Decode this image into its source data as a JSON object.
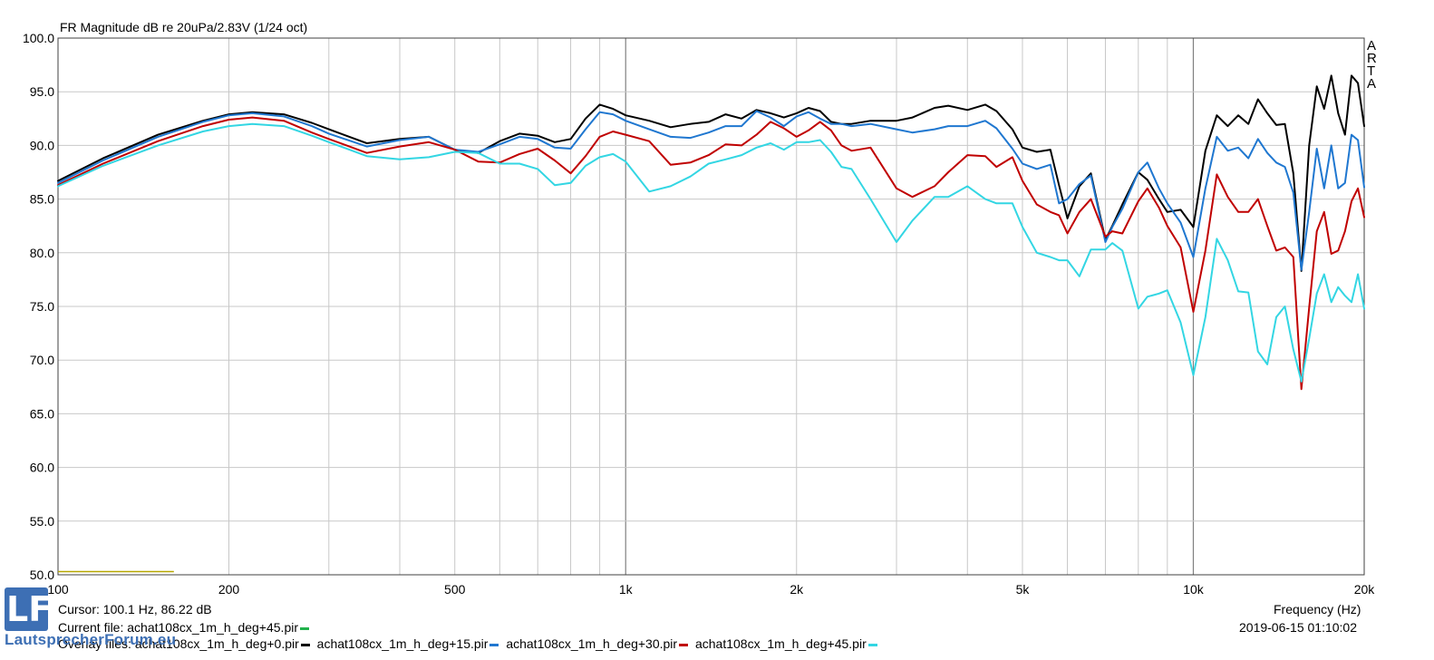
{
  "title": "FR Magnitude dB re 20uPa/2.83V (1/24 oct)",
  "brand_letters": [
    "A",
    "R",
    "T",
    "A"
  ],
  "cursor_text": "Cursor: 100.1 Hz, 86.22 dB",
  "current_file": {
    "label": "Current file: achat108cx_1m_h_deg+45.pir",
    "color": "#22b14c"
  },
  "overlay_label": "Overlay files:",
  "overlay_files": [
    {
      "name": "achat108cx_1m_h_deg+0.pir",
      "color": "#000000"
    },
    {
      "name": "achat108cx_1m_h_deg+15.pir",
      "color": "#1f77d0"
    },
    {
      "name": "achat108cx_1m_h_deg+30.pir",
      "color": "#c00000"
    },
    {
      "name": "achat108cx_1m_h_deg+45.pir",
      "color": "#33d6e3"
    }
  ],
  "xlabel": "Frequency (Hz)",
  "timestamp": "2019-06-15  01:10:02",
  "logo": {
    "letters": "LF",
    "text": "LautsprecherForum.eu"
  },
  "chart_data": {
    "type": "line",
    "title": "FR Magnitude dB re 20uPa/2.83V (1/24 oct)",
    "xlabel": "Frequency (Hz)",
    "ylabel": "",
    "xscale": "log",
    "xlim": [
      100,
      20000
    ],
    "ylim": [
      50,
      100
    ],
    "grid": true,
    "x_ticks": [
      {
        "v": 100,
        "label": "100"
      },
      {
        "v": 200,
        "label": "200"
      },
      {
        "v": 500,
        "label": "500"
      },
      {
        "v": 1000,
        "label": "1k"
      },
      {
        "v": 2000,
        "label": "2k"
      },
      {
        "v": 5000,
        "label": "5k"
      },
      {
        "v": 10000,
        "label": "10k"
      },
      {
        "v": 20000,
        "label": "20k"
      }
    ],
    "y_ticks": [
      {
        "v": 100,
        "label": "100.0"
      },
      {
        "v": 95,
        "label": "95.0"
      },
      {
        "v": 90,
        "label": "90.0"
      },
      {
        "v": 85,
        "label": "85.0"
      },
      {
        "v": 80,
        "label": "80.0"
      },
      {
        "v": 75,
        "label": "75.0"
      },
      {
        "v": 70,
        "label": "70.0"
      },
      {
        "v": 65,
        "label": "65.0"
      },
      {
        "v": 60,
        "label": "60.0"
      },
      {
        "v": 55,
        "label": "55.0"
      },
      {
        "v": 50,
        "label": "50.0"
      }
    ],
    "reference_line": {
      "x": [
        100,
        160
      ],
      "y": 50.3,
      "color": "#b5a600"
    },
    "series": [
      {
        "name": "achat108cx_1m_h_deg+0.pir",
        "color": "#000000",
        "x": [
          100,
          120,
          150,
          180,
          200,
          220,
          250,
          280,
          300,
          350,
          400,
          450,
          500,
          550,
          600,
          650,
          700,
          750,
          800,
          850,
          900,
          950,
          1000,
          1100,
          1200,
          1300,
          1400,
          1500,
          1600,
          1700,
          1800,
          1900,
          2000,
          2100,
          2200,
          2300,
          2400,
          2500,
          2700,
          3000,
          3200,
          3500,
          3700,
          4000,
          4300,
          4500,
          4800,
          5000,
          5300,
          5600,
          5800,
          6000,
          6300,
          6600,
          7000,
          7200,
          7500,
          8000,
          8300,
          8700,
          9000,
          9500,
          10000,
          10500,
          11000,
          11500,
          12000,
          12500,
          13000,
          13500,
          14000,
          14500,
          15000,
          15500,
          16000,
          16500,
          17000,
          17500,
          18000,
          18500,
          19000,
          19500,
          20000
        ],
        "y": [
          86.7,
          88.8,
          91.0,
          92.3,
          92.9,
          93.1,
          92.9,
          92.1,
          91.5,
          90.2,
          90.6,
          90.8,
          89.6,
          89.3,
          90.4,
          91.1,
          90.9,
          90.3,
          90.6,
          92.5,
          93.8,
          93.4,
          92.8,
          92.3,
          91.7,
          92.0,
          92.2,
          92.9,
          92.5,
          93.3,
          93.0,
          92.6,
          93.0,
          93.5,
          93.2,
          92.2,
          92.0,
          92.0,
          92.3,
          92.3,
          92.6,
          93.5,
          93.7,
          93.3,
          93.8,
          93.2,
          91.5,
          89.8,
          89.4,
          89.6,
          86.3,
          83.2,
          86.2,
          87.4,
          81.2,
          82.5,
          84.5,
          87.5,
          86.8,
          85.0,
          83.8,
          84.0,
          82.4,
          89.5,
          92.8,
          91.8,
          92.8,
          92.0,
          94.3,
          93.0,
          91.9,
          92.0,
          87.4,
          78.3,
          90.0,
          95.5,
          93.4,
          96.5,
          93.0,
          91.0,
          96.5,
          95.8,
          91.8
        ]
      },
      {
        "name": "achat108cx_1m_h_deg+15.pir",
        "color": "#1f77d0",
        "x": [
          100,
          120,
          150,
          180,
          200,
          220,
          250,
          280,
          300,
          350,
          400,
          450,
          500,
          550,
          600,
          650,
          700,
          750,
          800,
          850,
          900,
          950,
          1000,
          1100,
          1200,
          1300,
          1400,
          1500,
          1600,
          1700,
          1800,
          1900,
          2000,
          2100,
          2200,
          2300,
          2400,
          2500,
          2700,
          3000,
          3200,
          3500,
          3700,
          4000,
          4300,
          4500,
          4800,
          5000,
          5300,
          5600,
          5800,
          6000,
          6300,
          6600,
          7000,
          7200,
          7500,
          8000,
          8300,
          8700,
          9000,
          9500,
          10000,
          10500,
          11000,
          11500,
          12000,
          12500,
          13000,
          13500,
          14000,
          14500,
          15000,
          15500,
          16000,
          16500,
          17000,
          17500,
          18000,
          18500,
          19000,
          19500,
          20000
        ],
        "y": [
          86.5,
          88.6,
          90.8,
          92.2,
          92.8,
          93.0,
          92.7,
          91.8,
          91.1,
          89.9,
          90.5,
          90.8,
          89.6,
          89.4,
          90.1,
          90.8,
          90.6,
          89.8,
          89.7,
          91.5,
          93.1,
          92.9,
          92.3,
          91.5,
          90.8,
          90.7,
          91.2,
          91.8,
          91.8,
          93.2,
          92.6,
          91.8,
          92.7,
          93.1,
          92.5,
          92.0,
          92.0,
          91.8,
          92.0,
          91.5,
          91.2,
          91.5,
          91.8,
          91.8,
          92.3,
          91.6,
          89.7,
          88.3,
          87.8,
          88.2,
          84.6,
          85.0,
          86.4,
          87.2,
          81.0,
          82.4,
          84.1,
          87.5,
          88.4,
          86.0,
          84.6,
          82.8,
          79.6,
          86.0,
          90.8,
          89.5,
          89.8,
          88.8,
          90.6,
          89.3,
          88.4,
          88.0,
          85.6,
          78.4,
          83.8,
          89.7,
          86.0,
          90.0,
          86.0,
          86.5,
          91.0,
          90.5,
          86.1
        ]
      },
      {
        "name": "achat108cx_1m_h_deg+30.pir",
        "color": "#c00000",
        "x": [
          100,
          120,
          150,
          180,
          200,
          220,
          250,
          280,
          300,
          350,
          400,
          450,
          500,
          550,
          600,
          650,
          700,
          750,
          800,
          850,
          900,
          950,
          1000,
          1100,
          1200,
          1300,
          1400,
          1500,
          1600,
          1700,
          1800,
          1900,
          2000,
          2100,
          2200,
          2300,
          2400,
          2500,
          2700,
          3000,
          3200,
          3500,
          3700,
          4000,
          4300,
          4500,
          4800,
          5000,
          5300,
          5600,
          5800,
          6000,
          6300,
          6600,
          7000,
          7200,
          7500,
          8000,
          8300,
          8700,
          9000,
          9500,
          10000,
          10500,
          11000,
          11500,
          12000,
          12500,
          13000,
          13500,
          14000,
          14500,
          15000,
          15500,
          16000,
          16500,
          17000,
          17500,
          18000,
          18500,
          19000,
          19500,
          20000
        ],
        "y": [
          86.3,
          88.3,
          90.4,
          91.8,
          92.4,
          92.6,
          92.3,
          91.2,
          90.6,
          89.3,
          89.9,
          90.3,
          89.6,
          88.5,
          88.4,
          89.2,
          89.7,
          88.6,
          87.4,
          89.0,
          90.8,
          91.3,
          91.0,
          90.4,
          88.2,
          88.4,
          89.1,
          90.1,
          90.0,
          91.0,
          92.2,
          91.6,
          90.8,
          91.4,
          92.2,
          91.4,
          90.0,
          89.5,
          89.8,
          86.0,
          85.2,
          86.2,
          87.5,
          89.1,
          89.0,
          88.0,
          88.9,
          86.7,
          84.5,
          83.8,
          83.5,
          81.8,
          83.8,
          85.0,
          81.5,
          82.0,
          81.8,
          84.8,
          86.0,
          84.2,
          82.5,
          80.5,
          74.5,
          80.2,
          87.3,
          85.2,
          83.8,
          83.8,
          85.0,
          82.5,
          80.2,
          80.5,
          79.6,
          67.3,
          74.9,
          82.0,
          83.8,
          79.9,
          80.2,
          82.0,
          84.8,
          86.0,
          83.3
        ]
      },
      {
        "name": "achat108cx_1m_h_deg+45.pir",
        "color": "#33d6e3",
        "x": [
          100,
          120,
          150,
          180,
          200,
          220,
          250,
          280,
          300,
          350,
          400,
          450,
          500,
          550,
          600,
          650,
          700,
          750,
          800,
          850,
          900,
          950,
          1000,
          1100,
          1200,
          1300,
          1400,
          1500,
          1600,
          1700,
          1800,
          1900,
          2000,
          2100,
          2200,
          2300,
          2400,
          2500,
          2700,
          3000,
          3200,
          3500,
          3700,
          4000,
          4300,
          4500,
          4800,
          5000,
          5300,
          5600,
          5800,
          6000,
          6300,
          6600,
          7000,
          7200,
          7500,
          8000,
          8300,
          8700,
          9000,
          9500,
          10000,
          10500,
          11000,
          11500,
          12000,
          12500,
          13000,
          13500,
          14000,
          14500,
          15000,
          15500,
          16000,
          16500,
          17000,
          17500,
          18000,
          18500,
          19000,
          19500,
          20000
        ],
        "y": [
          86.2,
          88.1,
          90.0,
          91.3,
          91.8,
          92.0,
          91.8,
          90.9,
          90.3,
          89.0,
          88.7,
          88.9,
          89.4,
          89.3,
          88.3,
          88.3,
          87.8,
          86.3,
          86.5,
          88.1,
          88.9,
          89.2,
          88.5,
          85.7,
          86.2,
          87.1,
          88.3,
          88.7,
          89.1,
          89.8,
          90.2,
          89.6,
          90.3,
          90.3,
          90.5,
          89.4,
          88.0,
          87.8,
          85.0,
          81.0,
          83.0,
          85.2,
          85.2,
          86.2,
          85.0,
          84.6,
          84.6,
          82.4,
          80.0,
          79.6,
          79.3,
          79.3,
          77.8,
          80.3,
          80.3,
          80.9,
          80.2,
          74.8,
          75.9,
          76.2,
          76.5,
          73.5,
          68.6,
          74.0,
          81.3,
          79.3,
          76.4,
          76.3,
          70.8,
          69.6,
          74.0,
          75.0,
          71.0,
          68.0,
          72.0,
          76.2,
          78.0,
          75.4,
          76.8,
          76.0,
          75.4,
          78.0,
          74.8
        ]
      }
    ]
  }
}
